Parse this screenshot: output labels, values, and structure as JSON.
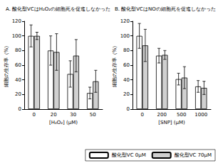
{
  "chart_data": [
    {
      "type": "bar",
      "title": "A. 酸化型VCはH₂O₂の細胞死を促進しなかった",
      "x_label": "[H₂O₂] (μM)",
      "y_label": "細胞の生存率（%）",
      "categories": [
        "0",
        "20",
        "30",
        "50"
      ],
      "series": [
        {
          "name": "酸化型VC 0μM",
          "color": "#ffffff",
          "values": [
            100,
            80,
            48,
            22
          ],
          "errors": [
            15,
            20,
            18,
            8
          ]
        },
        {
          "name": "酸化型VC 70μM",
          "color": "#d0d0d0",
          "values": [
            100,
            78,
            73,
            38
          ],
          "errors": [
            5,
            25,
            22,
            15
          ]
        }
      ],
      "ylim": [
        0,
        120
      ],
      "yticks": [
        0,
        20,
        40,
        60,
        80,
        100,
        120
      ],
      "grid": false,
      "legend": "bottom right"
    },
    {
      "type": "bar",
      "title": "B. 酸化型VCはNOの細胞死を促進しなかった",
      "x_label": "[SNP] (μM)",
      "y_label": "細胞の生存率（%）",
      "categories": [
        "0",
        "200",
        "500",
        "1000"
      ],
      "series": [
        {
          "name": "酸化型VC 0μM",
          "color": "#ffffff",
          "values": [
            100,
            73,
            41,
            31
          ],
          "errors": [
            17,
            10,
            8,
            8
          ]
        },
        {
          "name": "酸化型VC 70μM",
          "color": "#d0d0d0",
          "values": [
            87,
            74,
            43,
            29
          ],
          "errors": [
            22,
            6,
            15,
            9
          ]
        }
      ],
      "ylim": [
        0,
        120
      ],
      "yticks": [
        0,
        20,
        40,
        60,
        80,
        100,
        120
      ],
      "grid": false,
      "legend": "bottom right"
    }
  ]
}
